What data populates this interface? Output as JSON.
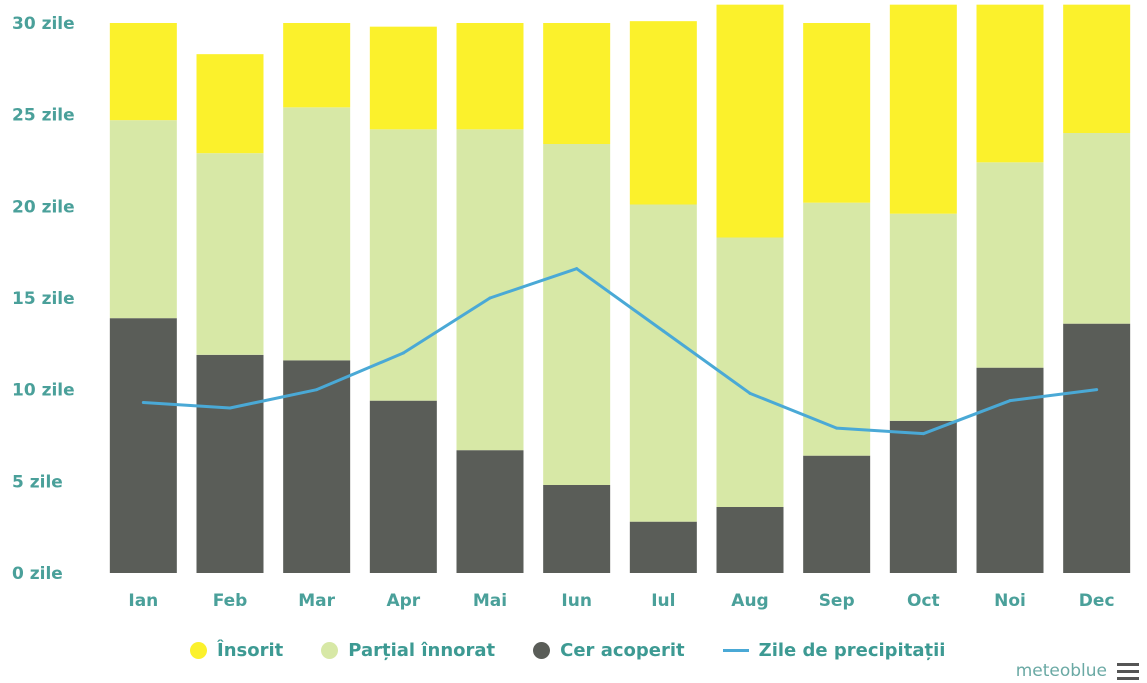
{
  "chart_data": {
    "type": "bar",
    "stacked": true,
    "categories": [
      "Ian",
      "Feb",
      "Mar",
      "Apr",
      "Mai",
      "Iun",
      "Iul",
      "Aug",
      "Sep",
      "Oct",
      "Noi",
      "Dec"
    ],
    "y_ticks": [
      "0 zile",
      "5 zile",
      "10 zile",
      "15 zile",
      "20 zile",
      "25 zile",
      "30 zile"
    ],
    "ylim": [
      0,
      30
    ],
    "series": [
      {
        "name": "Cer acoperit",
        "color": "#5a5d58",
        "values": [
          13.9,
          11.9,
          11.6,
          9.4,
          6.7,
          4.8,
          2.8,
          3.6,
          6.4,
          8.3,
          11.2,
          13.6
        ]
      },
      {
        "name": "Parțial înnorat",
        "color": "#d7e8a6",
        "values": [
          10.8,
          11.0,
          13.8,
          14.8,
          17.5,
          18.6,
          17.3,
          14.7,
          13.8,
          11.3,
          11.2,
          10.4
        ]
      },
      {
        "name": "Însorit",
        "color": "#fbf12c",
        "values": [
          5.3,
          5.4,
          4.6,
          5.6,
          5.8,
          6.6,
          10.0,
          12.7,
          9.8,
          11.4,
          8.6,
          7.0
        ]
      }
    ],
    "line_series": {
      "name": "Zile de precipitații",
      "color": "#4aa9d6",
      "values": [
        9.3,
        9.0,
        10.0,
        12.0,
        15.0,
        16.6,
        13.2,
        9.8,
        7.9,
        7.6,
        9.4,
        10.0
      ]
    },
    "grid": false,
    "legend_position": "bottom"
  },
  "legend": {
    "items": [
      {
        "label": "Însorit",
        "color": "#fbf12c",
        "kind": "dot"
      },
      {
        "label": "Parțial înnorat",
        "color": "#d7e8a6",
        "kind": "dot"
      },
      {
        "label": "Cer acoperit",
        "color": "#5a5d58",
        "kind": "dot"
      },
      {
        "label": "Zile de precipitații",
        "color": "#4aa9d6",
        "kind": "line"
      }
    ]
  },
  "brand": {
    "name": "meteoblue",
    "menu_icon": "hamburger-icon"
  }
}
